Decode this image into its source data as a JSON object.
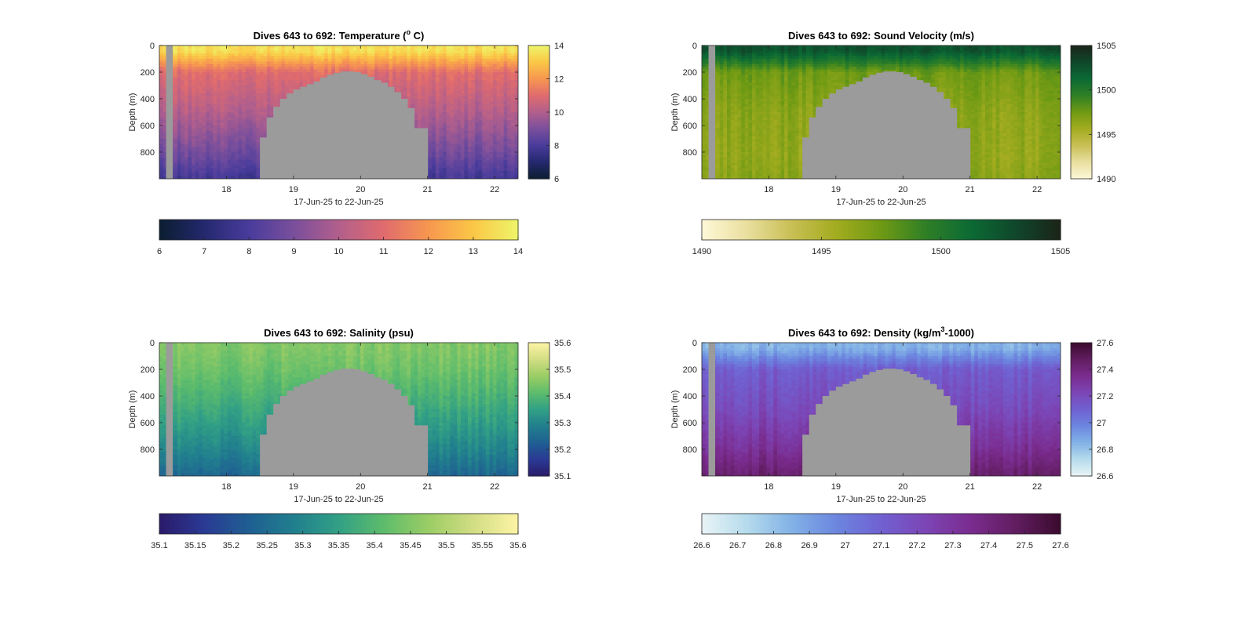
{
  "chart_data": [
    {
      "type": "heatmap",
      "title": "Dives 643 to 692: Temperature (° C)",
      "title_parts": {
        "prefix": "Dives 643 to 692: Temperature (",
        "sup": "o",
        "suffix": " C)"
      },
      "ylabel": "Depth (m)",
      "xlabel": "17-Jun-25 to 22-Jun-25",
      "xlim": [
        17.0,
        22.35
      ],
      "ylim": [
        1000,
        0
      ],
      "xticks": [
        18,
        19,
        20,
        21,
        22
      ],
      "yticks": [
        0,
        200,
        400,
        600,
        800
      ],
      "clim": [
        6,
        14
      ],
      "colorbar_right_ticks": [
        6,
        8,
        10,
        12,
        14
      ],
      "colorbar_bottom_ticks": [
        6,
        7,
        8,
        9,
        10,
        11,
        12,
        13,
        14
      ],
      "colormap": [
        "#0b1e30",
        "#24286e",
        "#493c9c",
        "#7a4f9c",
        "#b25f8c",
        "#e06b6e",
        "#f79750",
        "#fbc746",
        "#eef56a"
      ],
      "profile": {
        "surface": 13.5,
        "mixed_depth": 40,
        "t200": 11.0,
        "t500": 10.0,
        "t800": 8.8,
        "t1000": 7.8
      },
      "no_data_color": "#9b9b9b"
    },
    {
      "type": "heatmap",
      "title": "Dives 643 to 692: Sound Velocity (m/s)",
      "title_parts": {
        "prefix": "Dives 643 to 692: Sound Velocity (m/s)",
        "sup": "",
        "suffix": ""
      },
      "ylabel": "Depth (m)",
      "xlabel": "17-Jun-25 to 22-Jun-25",
      "xlim": [
        17.0,
        22.35
      ],
      "ylim": [
        1000,
        0
      ],
      "xticks": [
        18,
        19,
        20,
        21,
        22
      ],
      "yticks": [
        0,
        200,
        400,
        600,
        800
      ],
      "clim": [
        1490,
        1505
      ],
      "colorbar_right_ticks": [
        1490,
        1495,
        1500,
        1505
      ],
      "colorbar_bottom_ticks": [
        1490,
        1495,
        1500,
        1505
      ],
      "colormap": [
        "#fdf8d8",
        "#e9df9f",
        "#c9bf55",
        "#a2ac1f",
        "#6f9a14",
        "#2f7f26",
        "#0b6a34",
        "#10472b",
        "#1b2418"
      ],
      "profile": {
        "surface": 1502.5,
        "mixed_depth": 40,
        "t200": 1497.5,
        "t500": 1496.5,
        "t800": 1496.2,
        "t1000": 1496.5
      },
      "no_data_color": "#9b9b9b"
    },
    {
      "type": "heatmap",
      "title": "Dives 643 to 692: Salinity (psu)",
      "title_parts": {
        "prefix": "Dives 643 to 692: Salinity (psu)",
        "sup": "",
        "suffix": ""
      },
      "ylabel": "Depth (m)",
      "xlabel": "17-Jun-25 to 22-Jun-25",
      "xlim": [
        17.0,
        22.35
      ],
      "ylim": [
        1000,
        0
      ],
      "xticks": [
        18,
        19,
        20,
        21,
        22
      ],
      "yticks": [
        0,
        200,
        400,
        600,
        800
      ],
      "clim": [
        35.1,
        35.6
      ],
      "colorbar_right_ticks": [
        35.1,
        35.2,
        35.3,
        35.4,
        35.5,
        35.6
      ],
      "colorbar_bottom_ticks": [
        "35.1",
        "35.15",
        "35.2",
        "35.25",
        "35.3",
        "35.35",
        "35.4",
        "35.45",
        "35.5",
        "35.55",
        "35.6"
      ],
      "colormap": [
        "#2a1a6a",
        "#2a3a94",
        "#1f5f92",
        "#217f8e",
        "#32a085",
        "#5dbc6c",
        "#9bcd65",
        "#d2dd83",
        "#fdf4a6"
      ],
      "profile": {
        "surface": 35.45,
        "mixed_depth": 40,
        "t200": 35.43,
        "t500": 35.37,
        "t800": 35.3,
        "t1000": 35.24
      },
      "no_data_color": "#9b9b9b"
    },
    {
      "type": "heatmap",
      "title": "Dives 643 to 692: Density (kg/m³-1000)",
      "title_parts": {
        "prefix": "Dives 643 to 692: Density (kg/m",
        "sup": "3",
        "suffix": "-1000)"
      },
      "ylabel": "Depth (m)",
      "xlabel": "17-Jun-25 to 22-Jun-25",
      "xlim": [
        17.0,
        22.35
      ],
      "ylim": [
        1000,
        0
      ],
      "xticks": [
        18,
        19,
        20,
        21,
        22
      ],
      "yticks": [
        0,
        200,
        400,
        600,
        800
      ],
      "clim": [
        26.6,
        27.6
      ],
      "colorbar_right_ticks": [
        26.6,
        26.8,
        27,
        27.2,
        27.4,
        27.6
      ],
      "colorbar_bottom_ticks": [
        26.6,
        26.7,
        26.8,
        26.9,
        27,
        27.1,
        27.2,
        27.3,
        27.4,
        27.5,
        27.6
      ],
      "colormap": [
        "#e9f4f6",
        "#b5dbec",
        "#82b2e6",
        "#6c86df",
        "#7061d1",
        "#7c45b5",
        "#7a2c8e",
        "#611d60",
        "#3a0b2e"
      ],
      "profile": {
        "surface": 26.85,
        "mixed_depth": 40,
        "t200": 27.12,
        "t500": 27.2,
        "t800": 27.33,
        "t1000": 27.45
      },
      "no_data_color": "#9b9b9b"
    }
  ],
  "data_gap": {
    "left_strip": [
      17.1,
      17.2
    ],
    "bathymetry_columns": [
      {
        "x": [
          18.5,
          18.6
        ],
        "top": 690
      },
      {
        "x": [
          18.6,
          18.7
        ],
        "top": 540
      },
      {
        "x": [
          18.7,
          18.8
        ],
        "top": 460
      },
      {
        "x": [
          18.8,
          18.9
        ],
        "top": 400
      },
      {
        "x": [
          18.9,
          19.0
        ],
        "top": 360
      },
      {
        "x": [
          19.0,
          19.1
        ],
        "top": 330
      },
      {
        "x": [
          19.1,
          19.2
        ],
        "top": 310
      },
      {
        "x": [
          19.2,
          19.3
        ],
        "top": 290
      },
      {
        "x": [
          19.3,
          19.4
        ],
        "top": 270
      },
      {
        "x": [
          19.4,
          19.5
        ],
        "top": 240
      },
      {
        "x": [
          19.5,
          19.6
        ],
        "top": 220
      },
      {
        "x": [
          19.6,
          19.7
        ],
        "top": 205
      },
      {
        "x": [
          19.7,
          19.8
        ],
        "top": 195
      },
      {
        "x": [
          19.8,
          19.9
        ],
        "top": 195
      },
      {
        "x": [
          19.9,
          20.0
        ],
        "top": 200
      },
      {
        "x": [
          20.0,
          20.1
        ],
        "top": 215
      },
      {
        "x": [
          20.1,
          20.2
        ],
        "top": 235
      },
      {
        "x": [
          20.2,
          20.3
        ],
        "top": 260
      },
      {
        "x": [
          20.3,
          20.4
        ],
        "top": 280
      },
      {
        "x": [
          20.4,
          20.5
        ],
        "top": 310
      },
      {
        "x": [
          20.5,
          20.6
        ],
        "top": 350
      },
      {
        "x": [
          20.6,
          20.7
        ],
        "top": 400
      },
      {
        "x": [
          20.7,
          20.8
        ],
        "top": 470
      },
      {
        "x": [
          20.8,
          20.9
        ],
        "top": 620
      },
      {
        "x": [
          20.9,
          21.0
        ],
        "top": 620
      }
    ]
  }
}
